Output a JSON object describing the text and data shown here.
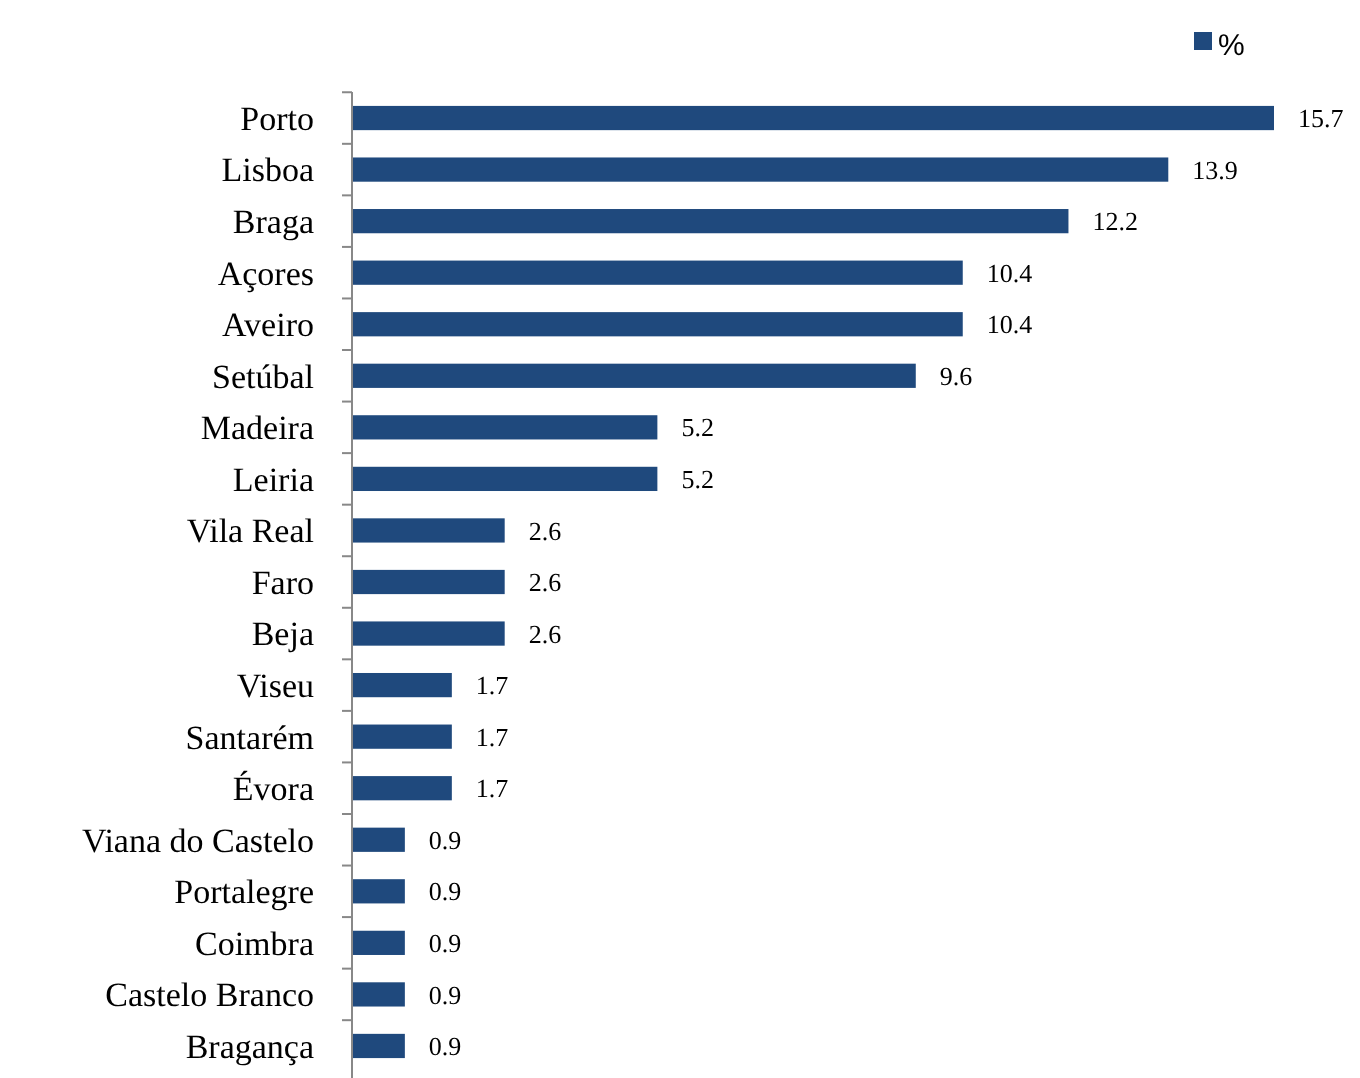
{
  "chart_data": {
    "type": "bar",
    "orientation": "horizontal",
    "categories": [
      "Porto",
      "Lisboa",
      "Braga",
      "Açores",
      "Aveiro",
      "Setúbal",
      "Madeira",
      "Leiria",
      "Vila Real",
      "Faro",
      "Beja",
      "Viseu",
      "Santarém",
      "Évora",
      "Viana do Castelo",
      "Portalegre",
      "Coimbra",
      "Castelo Branco",
      "Bragança"
    ],
    "series": [
      {
        "name": "%",
        "color": "#1f497d",
        "values": [
          15.7,
          13.9,
          12.2,
          10.4,
          10.4,
          9.6,
          5.2,
          5.2,
          2.6,
          2.6,
          2.6,
          1.7,
          1.7,
          1.7,
          0.9,
          0.9,
          0.9,
          0.9,
          0.9
        ]
      }
    ],
    "data_labels": true,
    "legend": "top right",
    "grid": false
  }
}
